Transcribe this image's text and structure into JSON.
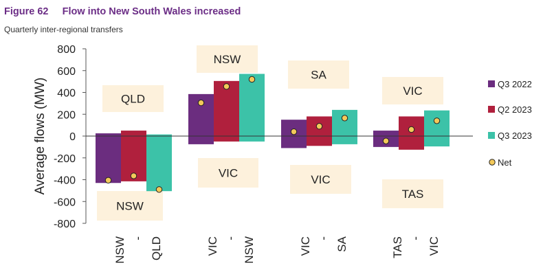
{
  "figure": {
    "number": "Figure 62",
    "title": "Flow into New South Wales increased",
    "subtitle": "Quarterly inter-regional transfers"
  },
  "chart_data": {
    "type": "bar",
    "ylabel": "Average flows (MW)",
    "ylim": [
      -800,
      800
    ],
    "yticks": [
      800,
      600,
      400,
      200,
      0,
      -200,
      -400,
      -600,
      -800
    ],
    "categories": [
      {
        "from": "NSW",
        "sep": "-",
        "to": "QLD",
        "pos_region": "QLD",
        "neg_region": "NSW"
      },
      {
        "from": "VIC",
        "sep": "-",
        "to": "NSW",
        "pos_region": "NSW",
        "neg_region": "VIC"
      },
      {
        "from": "VIC",
        "sep": "-",
        "to": "SA",
        "pos_region": "SA",
        "neg_region": "VIC"
      },
      {
        "from": "TAS",
        "sep": "-",
        "to": "VIC",
        "pos_region": "VIC",
        "neg_region": "TAS"
      }
    ],
    "series": [
      {
        "name": "Q3 2022",
        "color": "#6b2d7f",
        "positive": [
          25,
          385,
          150,
          50
        ],
        "negative": [
          -430,
          -75,
          -110,
          -100
        ],
        "net": [
          -405,
          305,
          40,
          -45
        ]
      },
      {
        "name": "Q2 2023",
        "color": "#b0203d",
        "positive": [
          50,
          505,
          180,
          180
        ],
        "negative": [
          -415,
          -50,
          -90,
          -125
        ],
        "net": [
          -365,
          455,
          90,
          60
        ]
      },
      {
        "name": "Q3 2023",
        "color": "#3cc2a8",
        "positive": [
          15,
          570,
          240,
          235
        ],
        "negative": [
          -505,
          -50,
          -75,
          -95
        ],
        "net": [
          -490,
          520,
          165,
          140
        ]
      }
    ],
    "net_marker": {
      "name": "Net",
      "color": "#f3c95a"
    },
    "label_box_color": "#fdf1dc"
  }
}
